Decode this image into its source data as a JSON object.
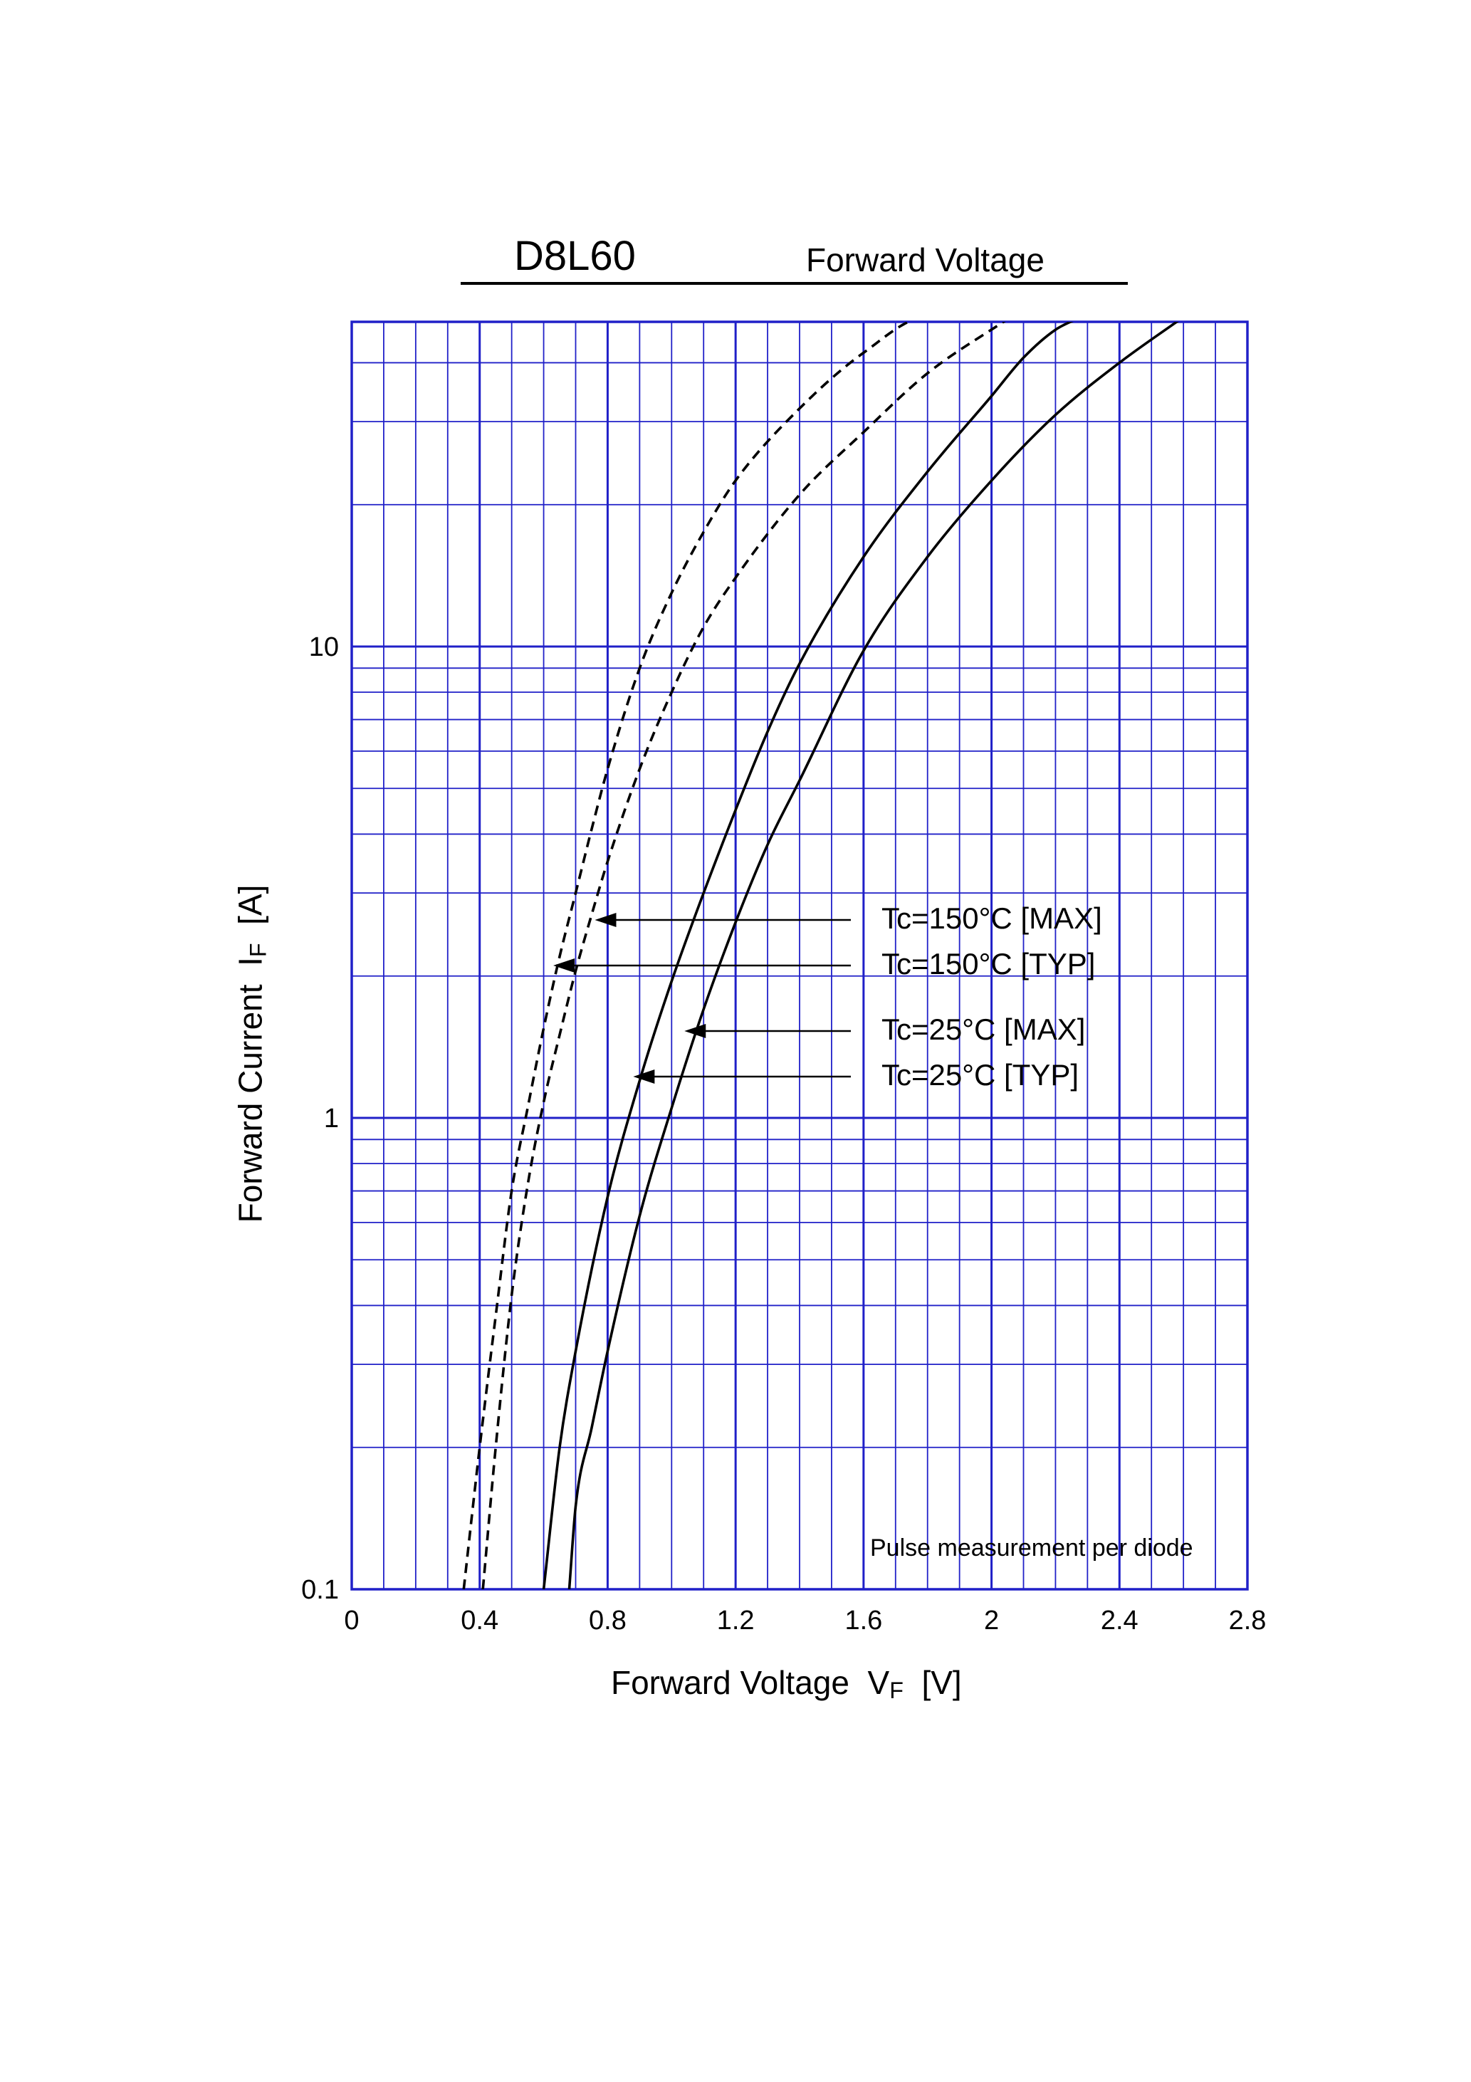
{
  "header": {
    "part_number": "D8L60",
    "graph_name": "Forward Voltage"
  },
  "note": "Pulse measurement per diode",
  "axis_labels": {
    "x": {
      "text": "Forward Voltage",
      "symbol": "V",
      "subscript": "F",
      "unit": "[V]"
    },
    "y": {
      "text": "Forward Current",
      "symbol": "I",
      "subscript": "F",
      "unit": "[A]"
    }
  },
  "colors": {
    "grid": "#2020c8",
    "curve": "#000000"
  },
  "chart_data": {
    "type": "line",
    "title": "D8L60",
    "subtitle": "Forward Voltage",
    "xlabel": "Forward Voltage VF [V]",
    "ylabel": "Forward Current IF [A]",
    "xlim": [
      0,
      2.8
    ],
    "ylim": [
      0.1,
      50
    ],
    "yscale": "log",
    "grid": true,
    "x_ticks": [
      "0",
      "0.4",
      "0.8",
      "1.2",
      "1.6",
      "2",
      "2.4",
      "2.8"
    ],
    "x_tick_values": [
      0,
      0.4,
      0.8,
      1.2,
      1.6,
      2.0,
      2.4,
      2.8
    ],
    "y_ticks": [
      "0.1",
      "1",
      "10"
    ],
    "y_tick_values": [
      0.1,
      1,
      10
    ],
    "series": [
      {
        "name": "Tc=150°C [MAX]",
        "style": "dashed",
        "x": [
          0.35,
          0.4,
          0.45,
          0.5,
          0.55,
          0.6,
          0.65,
          0.7,
          0.75,
          0.8,
          0.9,
          1.0,
          1.1,
          1.2,
          1.4,
          1.6,
          1.8,
          2.0
        ],
        "y": [
          0.1,
          0.2,
          0.38,
          0.7,
          1.05,
          1.55,
          2.2,
          3.0,
          4.1,
          5.5,
          9.0,
          13.0,
          17.5,
          22.5,
          32.0,
          42.0,
          50.0,
          50.0
        ]
      },
      {
        "name": "Tc=150°C [TYP]",
        "style": "dashed",
        "x": [
          0.41,
          0.45,
          0.5,
          0.55,
          0.6,
          0.65,
          0.7,
          0.75,
          0.8,
          0.9,
          1.0,
          1.1,
          1.2,
          1.4,
          1.6,
          1.8,
          2.06
        ],
        "y": [
          0.1,
          0.2,
          0.42,
          0.72,
          1.08,
          1.5,
          2.05,
          2.7,
          3.5,
          5.5,
          8.0,
          11.0,
          14.0,
          21.0,
          28.5,
          38.0,
          50.0
        ]
      },
      {
        "name": "Tc=25°C [MAX]",
        "style": "solid",
        "x": [
          0.6,
          0.65,
          0.7,
          0.8,
          0.9,
          1.0,
          1.1,
          1.2,
          1.3,
          1.4,
          1.6,
          1.8,
          2.0,
          2.1,
          2.2,
          2.28
        ],
        "y": [
          0.1,
          0.2,
          0.32,
          0.68,
          1.2,
          1.95,
          3.0,
          4.5,
          6.6,
          9.2,
          15.5,
          23.5,
          34.0,
          41.0,
          47.0,
          50.0
        ]
      },
      {
        "name": "Tc=25°C [TYP]",
        "style": "solid",
        "x": [
          0.68,
          0.7,
          0.75,
          0.8,
          0.9,
          1.0,
          1.1,
          1.2,
          1.3,
          1.4,
          1.6,
          1.8,
          2.0,
          2.2,
          2.4,
          2.6
        ],
        "y": [
          0.1,
          0.15,
          0.22,
          0.32,
          0.62,
          1.05,
          1.7,
          2.6,
          3.8,
          5.2,
          9.8,
          15.5,
          22.5,
          31.0,
          40.0,
          50.0
        ]
      }
    ]
  }
}
